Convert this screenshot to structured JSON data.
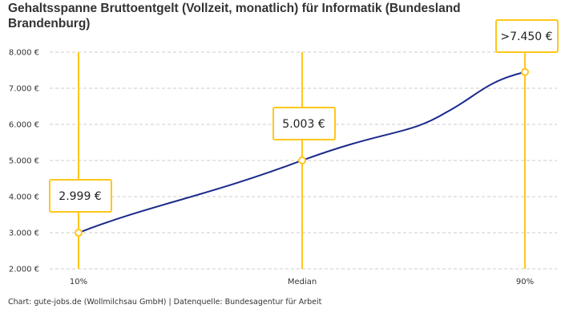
{
  "chart_data": {
    "type": "line",
    "title": "Gehaltsspanne Bruttoentgelt (Vollzeit, monatlich) für Informatik (Bundesland Brandenburg)",
    "categories": [
      "10%",
      "Median",
      "90%"
    ],
    "values": [
      2999,
      5003,
      7450
    ],
    "data_labels": [
      "2.999 €",
      "5.003 €",
      ">7.450 €"
    ],
    "ylim": [
      2000,
      8000
    ],
    "yticks": [
      2000,
      3000,
      4000,
      5000,
      6000,
      7000,
      8000
    ],
    "ytick_labels": [
      "2.000 €",
      "3.000 €",
      "4.000 €",
      "5.000 €",
      "6.000 €",
      "7.000 €",
      "8.000 €"
    ],
    "grid": true,
    "colors": {
      "line": "#1a2a8c",
      "marker": "#ffc61a",
      "grid": "#cccccc"
    }
  },
  "footer": "Chart: gute-jobs.de (Wollmilchsau GmbH) | Datenquelle: Bundesagentur für Arbeit"
}
